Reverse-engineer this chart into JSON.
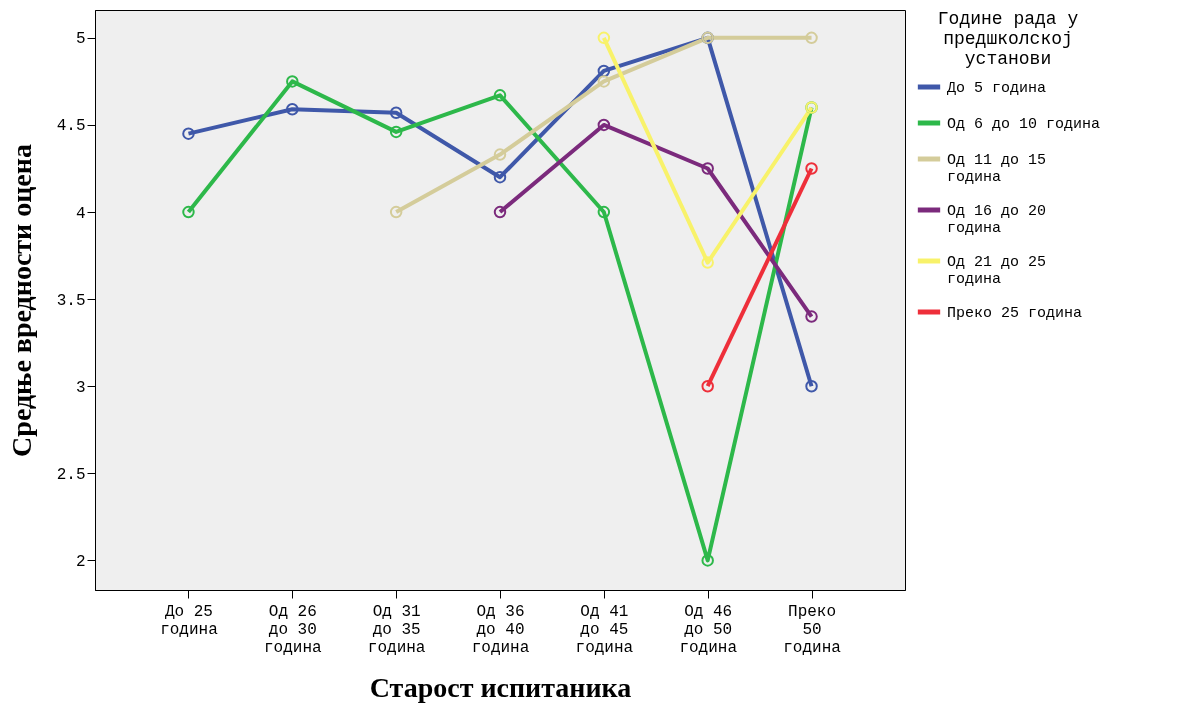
{
  "chart_data": {
    "type": "line",
    "xlabel": "Старост испитаника",
    "ylabel": "Средње вредности оцена",
    "legend_title": "Године рада у предшколској установи",
    "legend": "right",
    "marker": "circle",
    "grid": false,
    "categories": [
      "До 25 година",
      "Од 26 до 30 година",
      "Од 31 до 35 година",
      "Од 36 до 40 година",
      "Од 41 до 45 година",
      "Од 46 до 50 година",
      "Преко 50 година"
    ],
    "ylim": [
      1.83,
      5.16
    ],
    "yticks": [
      2,
      2.5,
      3,
      3.5,
      4,
      4.5,
      5
    ],
    "series": [
      {
        "name": "До 5  година",
        "color": "#3f58a9",
        "values": [
          4.45,
          4.59,
          4.57,
          4.2,
          4.81,
          5.0,
          3.0
        ]
      },
      {
        "name": "Од 6 до 10 година",
        "color": "#2db84a",
        "values": [
          4.0,
          4.75,
          4.46,
          4.67,
          4.0,
          2.0,
          4.6
        ]
      },
      {
        "name": "Од 11 до 15 година",
        "color": "#d4cc9a",
        "values": [
          null,
          null,
          4.0,
          4.33,
          4.75,
          5.0,
          5.0
        ]
      },
      {
        "name": "Од 16 до 20 година",
        "color": "#7b2a7c",
        "values": [
          null,
          null,
          null,
          4.0,
          4.5,
          4.25,
          3.4
        ]
      },
      {
        "name": "Од 21 до 25 година",
        "color": "#f8f26a",
        "values": [
          null,
          null,
          null,
          null,
          5.0,
          3.71,
          4.6
        ]
      },
      {
        "name": "Преко 25 година",
        "color": "#ee2f3a",
        "values": [
          null,
          null,
          null,
          null,
          null,
          3.0,
          4.25
        ]
      }
    ]
  }
}
